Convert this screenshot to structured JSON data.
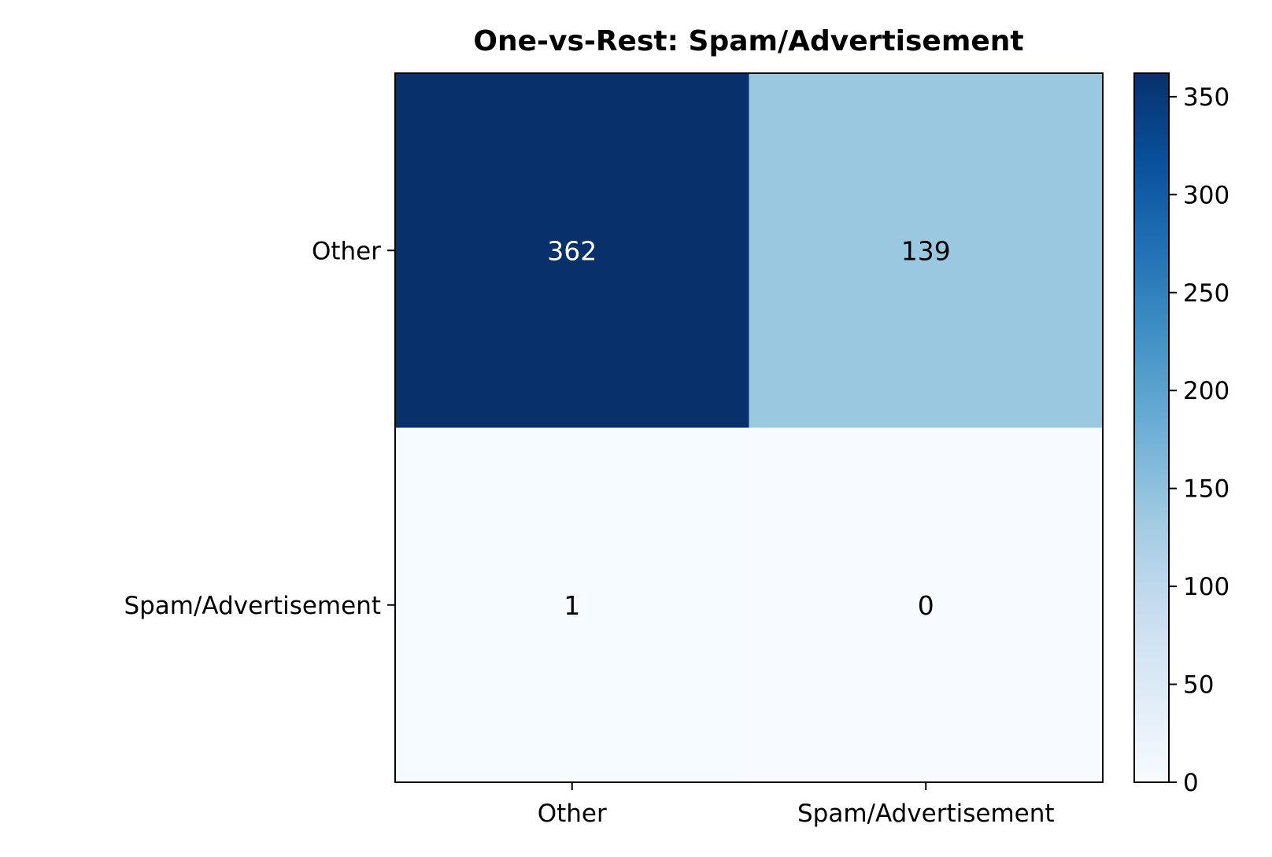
{
  "chart_data": {
    "type": "heatmap",
    "title": "One-vs-Rest: Spam/Advertisement",
    "xlabel": "",
    "ylabel": "",
    "x_categories": [
      "Other",
      "Spam/Advertisement"
    ],
    "y_categories": [
      "Other",
      "Spam/Advertisement"
    ],
    "values": [
      [
        362,
        139
      ],
      [
        1,
        0
      ]
    ],
    "colormap": "Blues",
    "colorbar": {
      "min": 0,
      "max": 362,
      "ticks": [
        0,
        50,
        100,
        150,
        200,
        250,
        300,
        350
      ],
      "placement": "right"
    },
    "grid": false,
    "colors": {
      "low": "#f7fbff",
      "high": "#08306b"
    }
  }
}
